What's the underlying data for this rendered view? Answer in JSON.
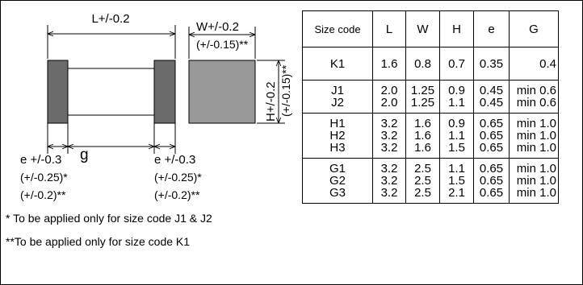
{
  "diagram": {
    "length_label": "L+/-0.2",
    "width_label": "W+/-0.2",
    "width_alt_label": "(+/-0.15)**",
    "height_label": "H+/-0.2",
    "height_alt_label": "(+/-0.15)**",
    "e_left_label": "e +/-0.3",
    "e_right_label": "e +/-0.3",
    "g_label": "g",
    "e_left_tol1": "(+/-0.25)*",
    "e_left_tol2": "(+/-0.2)**",
    "e_right_tol1": "(+/-0.25)*",
    "e_right_tol2": "(+/-0.2)**",
    "colors": {
      "terminal": "#6b6b6b",
      "body_end": "#999999",
      "line": "#000000"
    }
  },
  "notes": {
    "note1": "* To be applied only for size code J1 & J2",
    "note2": "**To be applied only for size code K1"
  },
  "table": {
    "headers": [
      "Size code",
      "L",
      "W",
      "H",
      "e",
      "G"
    ],
    "groups": [
      {
        "rows": [
          [
            "K1",
            "1.6",
            "0.8",
            "0.7",
            "0.35",
            "0.4"
          ]
        ]
      },
      {
        "rows": [
          [
            "J1",
            "2.0",
            "1.25",
            "0.9",
            "0.45",
            "min 0.6"
          ],
          [
            "J2",
            "2.0",
            "1.25",
            "1.1",
            "0.45",
            "min 0.6"
          ]
        ]
      },
      {
        "rows": [
          [
            "H1",
            "3.2",
            "1.6",
            "0.9",
            "0.65",
            "min 1.0"
          ],
          [
            "H2",
            "3.2",
            "1.6",
            "1.1",
            "0.65",
            "min 1.0"
          ],
          [
            "H3",
            "3.2",
            "1.6",
            "1.5",
            "0.65",
            "min 1.0"
          ]
        ]
      },
      {
        "rows": [
          [
            "G1",
            "3.2",
            "2.5",
            "1.1",
            "0.65",
            "min 1.0"
          ],
          [
            "G2",
            "3.2",
            "2.5",
            "1.5",
            "0.65",
            "min 1.0"
          ],
          [
            "G3",
            "3.2",
            "2.5",
            "2.1",
            "0.65",
            "min 1.0"
          ]
        ]
      }
    ]
  }
}
